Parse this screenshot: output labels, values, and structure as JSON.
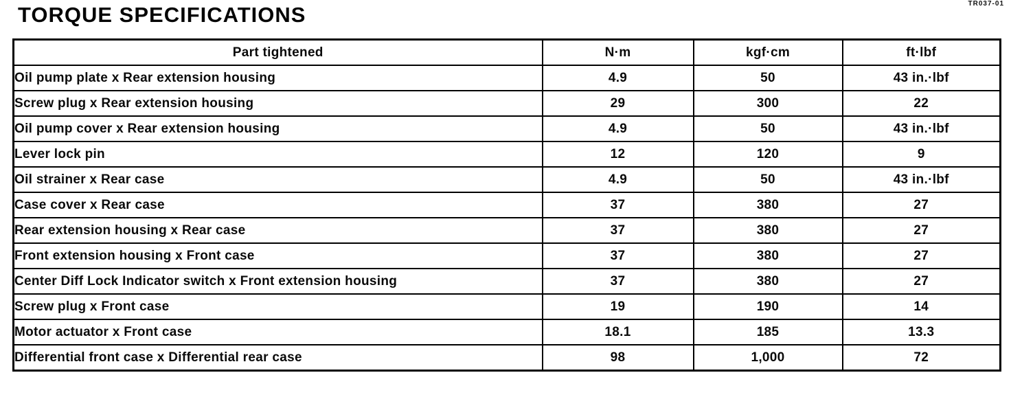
{
  "page": {
    "title": "TORQUE SPECIFICATIONS",
    "code": "TR037-01"
  },
  "table": {
    "columns": [
      "Part tightened",
      "N·m",
      "kgf·cm",
      "ft·lbf"
    ],
    "rows": [
      {
        "part": "Oil pump plate x Rear extension housing",
        "nm": "4.9",
        "kgfcm": "50",
        "ftlbf": "43 in.·lbf"
      },
      {
        "part": "Screw plug x Rear extension housing",
        "nm": "29",
        "kgfcm": "300",
        "ftlbf": "22"
      },
      {
        "part": "Oil pump cover x Rear extension housing",
        "nm": "4.9",
        "kgfcm": "50",
        "ftlbf": "43 in.·lbf"
      },
      {
        "part": "Lever lock pin",
        "nm": "12",
        "kgfcm": "120",
        "ftlbf": "9"
      },
      {
        "part": "Oil strainer x Rear case",
        "nm": "4.9",
        "kgfcm": "50",
        "ftlbf": "43 in.·lbf"
      },
      {
        "part": "Case cover x Rear case",
        "nm": "37",
        "kgfcm": "380",
        "ftlbf": "27"
      },
      {
        "part": "Rear extension housing x Rear case",
        "nm": "37",
        "kgfcm": "380",
        "ftlbf": "27"
      },
      {
        "part": "Front extension housing x Front case",
        "nm": "37",
        "kgfcm": "380",
        "ftlbf": "27"
      },
      {
        "part": "Center Diff Lock Indicator switch x Front extension housing",
        "nm": "37",
        "kgfcm": "380",
        "ftlbf": "27"
      },
      {
        "part": "Screw plug x Front case",
        "nm": "19",
        "kgfcm": "190",
        "ftlbf": "14"
      },
      {
        "part": "Motor actuator x Front case",
        "nm": "18.1",
        "kgfcm": "185",
        "ftlbf": "13.3"
      },
      {
        "part": "Differential front case x Differential rear case",
        "nm": "98",
        "kgfcm": "1,000",
        "ftlbf": "72"
      }
    ]
  },
  "colors": {
    "ink": "#000000",
    "paper": "#ffffff"
  }
}
